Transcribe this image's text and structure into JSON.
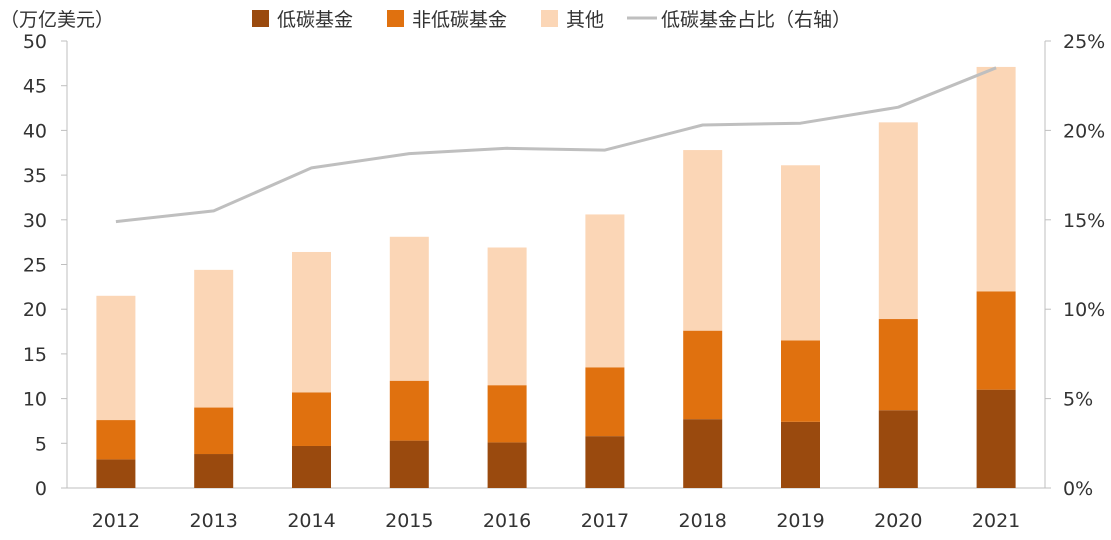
{
  "chart_data": {
    "type": "bar",
    "stacked": true,
    "unit_label": "（万亿美元）",
    "categories": [
      "2012",
      "2013",
      "2014",
      "2015",
      "2016",
      "2017",
      "2018",
      "2019",
      "2020",
      "2021"
    ],
    "series": [
      {
        "name": "低碳基金",
        "color": "#9a4a0e",
        "values": [
          3.2,
          3.8,
          4.7,
          5.3,
          5.1,
          5.8,
          7.7,
          7.4,
          8.7,
          11.0
        ]
      },
      {
        "name": "非低碳基金",
        "color": "#e0710f",
        "values": [
          4.4,
          5.2,
          6.0,
          6.7,
          6.4,
          7.7,
          9.9,
          9.1,
          10.2,
          11.0
        ]
      },
      {
        "name": "其他",
        "color": "#fbd6b6",
        "values": [
          13.9,
          15.4,
          15.7,
          16.1,
          15.4,
          17.1,
          20.2,
          19.6,
          22.0,
          25.1
        ]
      }
    ],
    "line": {
      "name": "低碳基金占比（右轴）",
      "color": "#bfbfbf",
      "values": [
        14.9,
        15.5,
        17.9,
        18.7,
        19.0,
        18.9,
        20.3,
        20.4,
        21.3,
        23.5
      ]
    },
    "y_left": {
      "min": 0,
      "max": 50,
      "ticks": [
        "0",
        "5",
        "10",
        "15",
        "20",
        "25",
        "30",
        "35",
        "40",
        "45",
        "50"
      ]
    },
    "y_right": {
      "min": 0,
      "max": 25,
      "ticks": [
        "0%",
        "5%",
        "10%",
        "15%",
        "20%",
        "25%"
      ]
    },
    "legend_position": "top"
  }
}
